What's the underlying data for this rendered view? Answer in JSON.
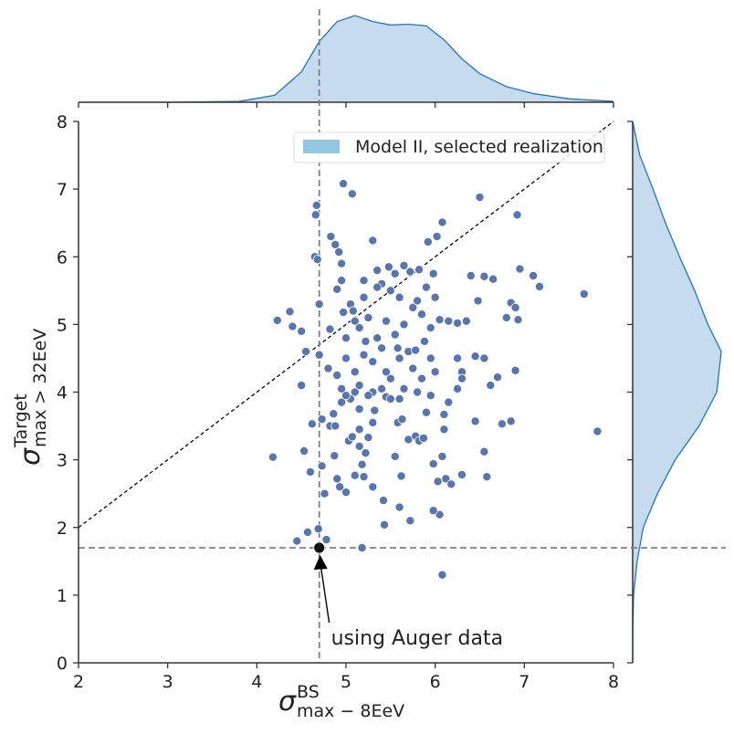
{
  "chart_data": {
    "type": "scatter",
    "xlabel": {
      "symbol": "σ",
      "sup": "BS",
      "sub": "max − 8EeV"
    },
    "ylabel": {
      "symbol": "σ",
      "sup": "Target",
      "sub": "max > 32EeV"
    },
    "xlim": [
      2,
      8
    ],
    "xticks": [
      2,
      3,
      4,
      5,
      6,
      7,
      8
    ],
    "ylim": [
      0,
      8
    ],
    "yticks": [
      0,
      1,
      2,
      3,
      4,
      5,
      6,
      7,
      8
    ],
    "identity_line": true,
    "legend": "upper right",
    "series": [
      {
        "name": "Model II, selected realization",
        "color": "#5875b0",
        "legend_color": "#93c6e0",
        "x": [
          4.18,
          4.23,
          4.37,
          4.4,
          4.45,
          4.5,
          4.5,
          4.53,
          4.55,
          4.57,
          4.6,
          4.62,
          4.65,
          4.66,
          4.67,
          4.68,
          4.7,
          4.7,
          4.69,
          4.73,
          4.73,
          4.76,
          4.78,
          4.8,
          4.82,
          4.83,
          4.86,
          4.88,
          4.9,
          4.92,
          4.95,
          4.97,
          5.07,
          4.97,
          5.0,
          5.05,
          5.1,
          5.15,
          5.18,
          5.2,
          5.3,
          5.35,
          5.4,
          5.48,
          5.55,
          5.65,
          5.72,
          5.82,
          5.98,
          5.92,
          6.02,
          6.08,
          6.5,
          6.92,
          7.67,
          7.82,
          6.95,
          7.1,
          7.17,
          6.8,
          6.65,
          6.4,
          6.55,
          6.48,
          6.85,
          6.9,
          6.93,
          6.08,
          6.05,
          5.98,
          5.72,
          5.6,
          5.43,
          5.42,
          5.3,
          5.18,
          5.1,
          5.2,
          4.93,
          4.9,
          5.0,
          4.87,
          4.82,
          4.88,
          5.03,
          5.07,
          5.15,
          5.22,
          5.25,
          5.32,
          5.45,
          5.5,
          5.58,
          5.55,
          5.62,
          5.63,
          5.7,
          5.78,
          5.82,
          5.87,
          5.98,
          6.03,
          6.08,
          6.12,
          6.18,
          6.3,
          6.55,
          6.58,
          6.45,
          6.75,
          6.85,
          6.9,
          6.62,
          6.7,
          6.55,
          6.45,
          6.3,
          6.25,
          6.15,
          6.1,
          6.1,
          6.0,
          5.95,
          5.85,
          5.75,
          5.7,
          5.6,
          5.5,
          5.4,
          5.3,
          5.2,
          5.1,
          5.05,
          4.95,
          4.9,
          5.0,
          5.15,
          5.25,
          5.35,
          5.45,
          5.55,
          5.65,
          5.75,
          5.85,
          5.95,
          6.05,
          6.15,
          6.25,
          6.35,
          6.0,
          5.9,
          5.8,
          5.6,
          5.5,
          5.35,
          5.2,
          5.08,
          4.95,
          5.1,
          5.22,
          5.4,
          5.58,
          5.78,
          5.88,
          6.25,
          6.3,
          5.95,
          5.65,
          5.45,
          5.3,
          5.15,
          4.95,
          5.25,
          5.6,
          5.8,
          5.9,
          5.3,
          5.15,
          5.0
        ],
        "values": [
          3.04,
          5.06,
          5.19,
          4.97,
          1.8,
          4.1,
          4.9,
          3.13,
          4.6,
          1.93,
          2.82,
          3.53,
          6.0,
          6.62,
          6.76,
          5.96,
          5.3,
          4.55,
          1.98,
          3.6,
          2.91,
          2.5,
          1.82,
          4.35,
          4.93,
          6.3,
          3.68,
          6.18,
          5.52,
          6.07,
          5.9,
          7.08,
          6.93,
          5.18,
          4.5,
          5.3,
          4.0,
          3.45,
          1.7,
          5.65,
          6.24,
          5.8,
          5.6,
          5.85,
          5.75,
          5.87,
          5.78,
          5.81,
          5.75,
          6.22,
          6.3,
          6.51,
          6.88,
          6.62,
          5.45,
          3.42,
          5.82,
          5.72,
          5.56,
          5.1,
          5.67,
          5.72,
          5.71,
          5.35,
          5.32,
          5.25,
          5.07,
          1.3,
          2.19,
          2.25,
          2.1,
          2.3,
          2.04,
          2.4,
          2.6,
          2.93,
          2.77,
          2.75,
          2.6,
          2.72,
          2.52,
          3.06,
          3.5,
          3.5,
          3.28,
          3.34,
          3.2,
          3.1,
          3.33,
          3.73,
          3.93,
          3.9,
          3.55,
          3.05,
          2.76,
          3.6,
          3.3,
          3.35,
          3.28,
          3.32,
          2.94,
          2.68,
          3.05,
          2.72,
          2.64,
          2.78,
          3.12,
          2.75,
          3.57,
          3.53,
          3.57,
          4.32,
          4.1,
          4.22,
          4.5,
          4.53,
          4.3,
          4.05,
          3.85,
          3.67,
          3.45,
          4.3,
          4.5,
          4.2,
          4.35,
          4.6,
          4.5,
          4.2,
          4.05,
          4.45,
          4.55,
          4.3,
          3.9,
          4.05,
          4.25,
          4.8,
          4.95,
          5.1,
          4.8,
          5.05,
          4.85,
          5.0,
          5.25,
          5.15,
          4.95,
          5.07,
          5.05,
          5.02,
          5.05,
          5.4,
          5.55,
          5.35,
          5.4,
          5.5,
          5.55,
          5.4,
          5.2,
          5.65,
          5.05,
          4.75,
          4.65,
          4.65,
          4.62,
          4.75,
          4.5,
          4.2,
          3.95,
          4.05,
          4.3,
          4.0,
          4.1,
          3.85,
          3.95,
          3.9,
          4.0,
          3.7,
          3.55,
          3.75,
          3.95
        ]
      }
    ],
    "observed": {
      "x": 4.7,
      "y": 1.7
    },
    "annotation": {
      "text": "using Auger data",
      "x": 4.75,
      "y": 0.35
    },
    "top_density": {
      "x": [
        2,
        3,
        3.8,
        4.2,
        4.5,
        4.7,
        4.9,
        5.1,
        5.3,
        5.5,
        5.7,
        5.9,
        6.1,
        6.3,
        6.5,
        6.8,
        7.1,
        7.5,
        8
      ],
      "values": [
        0,
        0,
        0.01,
        0.08,
        0.35,
        0.7,
        0.93,
        1.0,
        0.93,
        0.89,
        0.9,
        0.88,
        0.72,
        0.5,
        0.33,
        0.18,
        0.1,
        0.04,
        0.01
      ]
    },
    "right_density": {
      "y": [
        8,
        7.5,
        7,
        6.5,
        6,
        5.5,
        5,
        4.6,
        4,
        3.5,
        3,
        2.5,
        2,
        1.5,
        1,
        0.5,
        0
      ],
      "values": [
        0,
        0.08,
        0.23,
        0.37,
        0.53,
        0.7,
        0.85,
        1.0,
        0.95,
        0.75,
        0.48,
        0.28,
        0.12,
        0.05,
        0.01,
        0.003,
        0
      ]
    }
  }
}
